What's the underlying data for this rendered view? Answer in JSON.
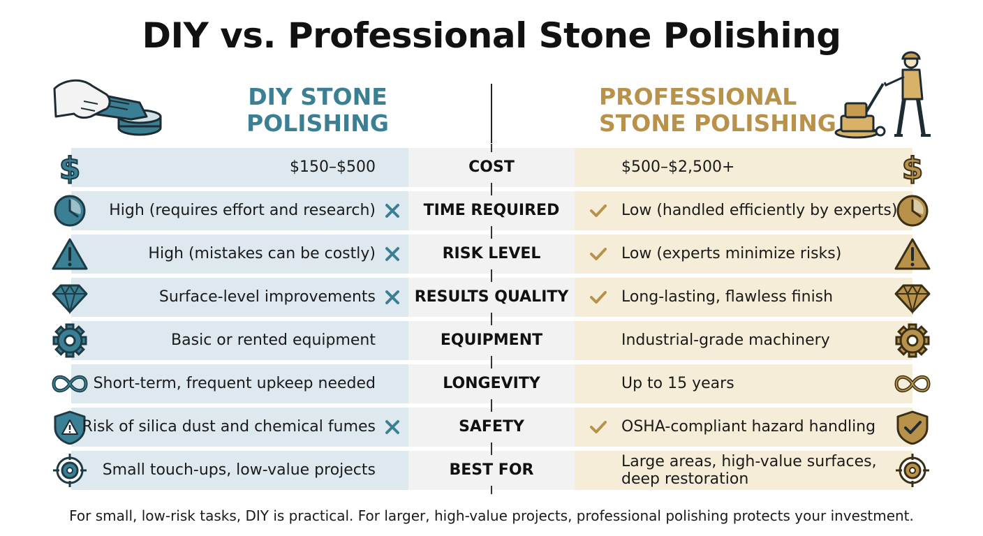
{
  "title": "DIY vs. Professional Stone Polishing",
  "header": {
    "diy_line1": "DIY STONE",
    "diy_line2": "POLISHING",
    "pro_line1": "PROFESSIONAL",
    "pro_line2": "STONE POLISHING"
  },
  "colors": {
    "diy_accent": "#3a7f93",
    "pro_accent": "#b8924a",
    "diy_band": "#dde9ee",
    "pro_band": "#f5edd8"
  },
  "rows": [
    {
      "category": "COST",
      "diy": "$150–$500",
      "pro": "$500–$2,500+",
      "diy_icon": "dollar-icon",
      "pro_icon": "dollar-icon",
      "diy_x": false,
      "pro_check": false
    },
    {
      "category": "TIME REQUIRED",
      "diy": "High (requires effort and research)",
      "pro": "Low (handled efficiently by experts)",
      "diy_icon": "clock-icon",
      "pro_icon": "clock-icon",
      "diy_x": true,
      "pro_check": true
    },
    {
      "category": "RISK LEVEL",
      "diy": "High (mistakes can be costly)",
      "pro": "Low (experts minimize risks)",
      "diy_icon": "warning-icon",
      "pro_icon": "warning-icon",
      "diy_x": true,
      "pro_check": true
    },
    {
      "category": "RESULTS QUALITY",
      "diy": "Surface-level improvements",
      "pro": "Long-lasting, flawless finish",
      "diy_icon": "diamond-icon",
      "pro_icon": "diamond-icon",
      "diy_x": true,
      "pro_check": true
    },
    {
      "category": "EQUIPMENT",
      "diy": "Basic or rented equipment",
      "pro": "Industrial-grade machinery",
      "diy_icon": "gear-icon",
      "pro_icon": "gear-icon",
      "diy_x": false,
      "pro_check": false
    },
    {
      "category": "LONGEVITY",
      "diy": "Short-term, frequent upkeep needed",
      "pro": "Up to 15 years",
      "diy_icon": "infinity-icon",
      "pro_icon": "infinity-icon",
      "diy_x": false,
      "pro_check": false
    },
    {
      "category": "SAFETY",
      "diy": "Risk of silica dust and chemical fumes",
      "pro": "OSHA-compliant hazard handling",
      "diy_icon": "shield-warning-icon",
      "pro_icon": "shield-check-icon",
      "diy_x": true,
      "pro_check": true
    },
    {
      "category": "BEST FOR",
      "diy": "Small touch-ups, low-value projects",
      "pro_line1": "Large areas, high-value surfaces,",
      "pro_line2": "deep restoration",
      "diy_icon": "target-icon",
      "pro_icon": "target-icon",
      "diy_x": false,
      "pro_check": false
    }
  ],
  "footer": "For small, low-risk tasks, DIY is practical. For larger, high-value projects, professional polishing protects your investment."
}
